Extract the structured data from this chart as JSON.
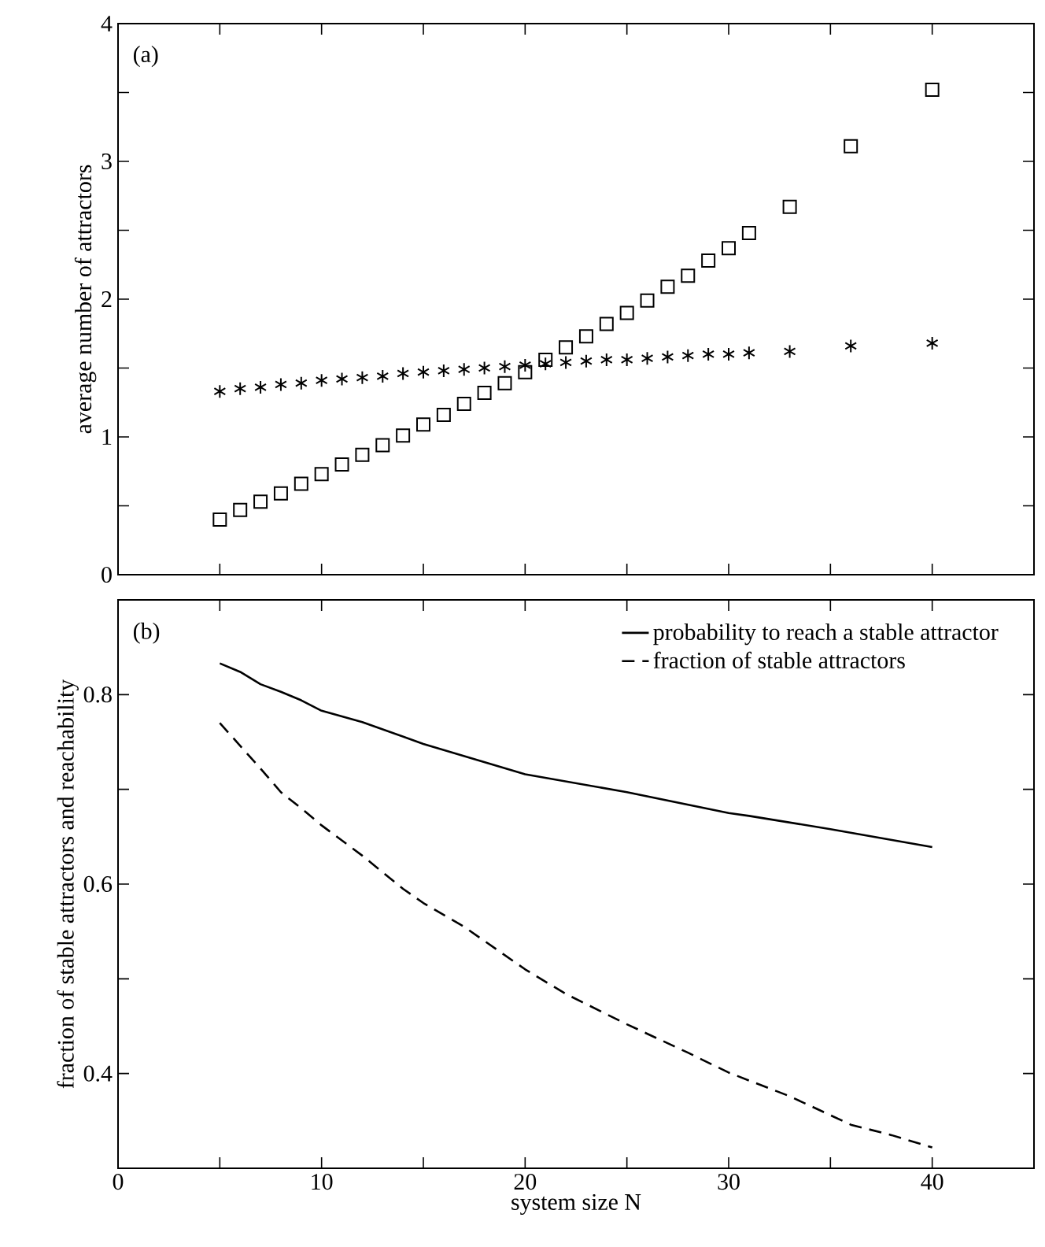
{
  "chart_data": [
    {
      "type": "scatter",
      "ylabel": "average number of attractors",
      "annotations": [
        "(a)"
      ],
      "xlim": [
        0,
        45
      ],
      "ylim": [
        0,
        4
      ],
      "xticks": [
        0,
        {
          "value": 5,
          "label": null
        },
        10,
        {
          "value": 15,
          "label": null
        },
        20,
        {
          "value": 25,
          "label": null
        },
        30,
        {
          "value": 35,
          "label": null
        },
        40
      ],
      "yticks": [
        0,
        {
          "value": 0.5,
          "label": null
        },
        1,
        {
          "value": 1.5,
          "label": null
        },
        2,
        {
          "value": 2.5,
          "label": null
        },
        3,
        {
          "value": 3.5,
          "label": null
        },
        4
      ],
      "tick_labels": "y",
      "legend": false,
      "x": [
        5,
        6,
        7,
        8,
        9,
        10,
        11,
        12,
        13,
        14,
        15,
        16,
        17,
        18,
        19,
        20,
        21,
        22,
        23,
        24,
        25,
        26,
        27,
        28,
        29,
        30,
        31,
        33,
        36,
        40
      ],
      "series": [
        {
          "color": "#000000",
          "marker": "square",
          "values": [
            0.4,
            0.47,
            0.53,
            0.59,
            0.66,
            0.73,
            0.8,
            0.87,
            0.94,
            1.01,
            1.09,
            1.16,
            1.24,
            1.32,
            1.39,
            1.47,
            1.56,
            1.65,
            1.73,
            1.82,
            1.9,
            1.99,
            2.09,
            2.17,
            2.28,
            2.37,
            2.48,
            2.67,
            3.11,
            3.52
          ]
        },
        {
          "color": "#000000",
          "marker": "cross",
          "values": [
            1.33,
            1.35,
            1.36,
            1.38,
            1.39,
            1.41,
            1.42,
            1.43,
            1.44,
            1.46,
            1.47,
            1.48,
            1.49,
            1.5,
            1.51,
            1.52,
            1.53,
            1.54,
            1.55,
            1.56,
            1.56,
            1.57,
            1.58,
            1.59,
            1.6,
            1.6,
            1.61,
            1.62,
            1.66,
            1.68
          ]
        }
      ]
    },
    {
      "type": "line",
      "xlabel": "system size N",
      "ylabel": "fraction of stable attractors and reachability",
      "annotations": [
        "(b)"
      ],
      "xlim": [
        0,
        45
      ],
      "ylim": [
        0.3,
        0.9
      ],
      "xticks": [
        0,
        {
          "value": 5,
          "label": null
        },
        10,
        {
          "value": 15,
          "label": null
        },
        20,
        {
          "value": 25,
          "label": null
        },
        30,
        {
          "value": 35,
          "label": null
        },
        40
      ],
      "yticks": [
        0.4,
        {
          "value": 0.5,
          "label": null
        },
        0.6,
        {
          "value": 0.7,
          "label": null
        },
        0.8
      ],
      "legend": "top right",
      "series": [
        {
          "name": "probability to reach a stable attractor",
          "color": "#000000",
          "line_style": "solid",
          "x": [
            5,
            6,
            7,
            8,
            9,
            10,
            12,
            15,
            20,
            25,
            30,
            31,
            35,
            40
          ],
          "values": [
            0.833,
            0.824,
            0.811,
            0.803,
            0.794,
            0.783,
            0.771,
            0.748,
            0.716,
            0.697,
            0.675,
            0.672,
            0.658,
            0.639
          ]
        },
        {
          "name": "fraction of stable attractors",
          "color": "#000000",
          "line_style": "dashed",
          "x": [
            5,
            6,
            7,
            8,
            9,
            10,
            12,
            14,
            15,
            17,
            20,
            22,
            25,
            28,
            30,
            33,
            35,
            36,
            38,
            40
          ],
          "values": [
            0.77,
            0.746,
            0.722,
            0.697,
            0.68,
            0.662,
            0.63,
            0.595,
            0.58,
            0.555,
            0.51,
            0.484,
            0.452,
            0.422,
            0.401,
            0.376,
            0.356,
            0.346,
            0.335,
            0.322
          ]
        }
      ]
    }
  ]
}
